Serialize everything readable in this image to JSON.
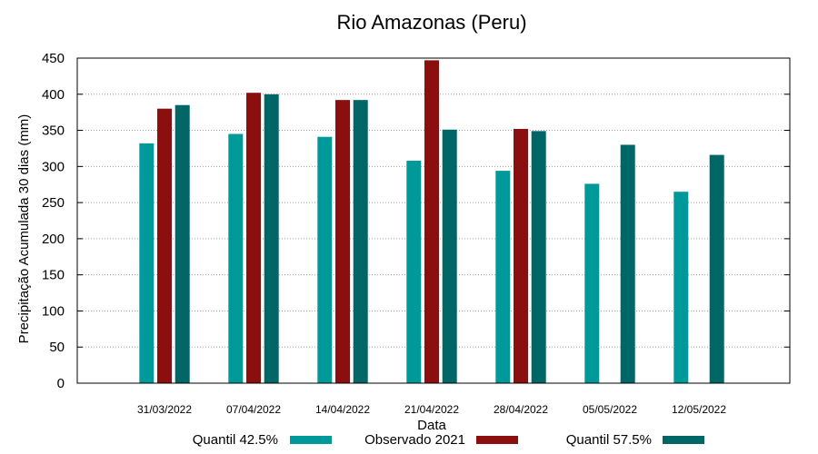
{
  "chart_data": {
    "type": "bar",
    "title": "Rio Amazonas (Peru)",
    "xlabel": "Data",
    "ylabel": "Precipitação Acumulada 30 dias (mm)",
    "ylim": [
      0,
      450
    ],
    "yticks": [
      0,
      50,
      100,
      150,
      200,
      250,
      300,
      350,
      400,
      450
    ],
    "grid": true,
    "legend_position": "bottom",
    "categories": [
      "31/03/2022",
      "07/04/2022",
      "14/04/2022",
      "21/04/2022",
      "28/04/2022",
      "05/05/2022",
      "12/05/2022"
    ],
    "series": [
      {
        "name": "Quantil 42.5%",
        "color": "#009999",
        "values": [
          332,
          345,
          341,
          308,
          294,
          276,
          265
        ]
      },
      {
        "name": "Observado 2021",
        "color": "#8b0f0f",
        "values": [
          380,
          402,
          392,
          447,
          352,
          null,
          null
        ]
      },
      {
        "name": "Quantil 57.5%",
        "color": "#006666",
        "values": [
          385,
          400,
          392,
          351,
          349,
          330,
          316
        ]
      }
    ]
  }
}
